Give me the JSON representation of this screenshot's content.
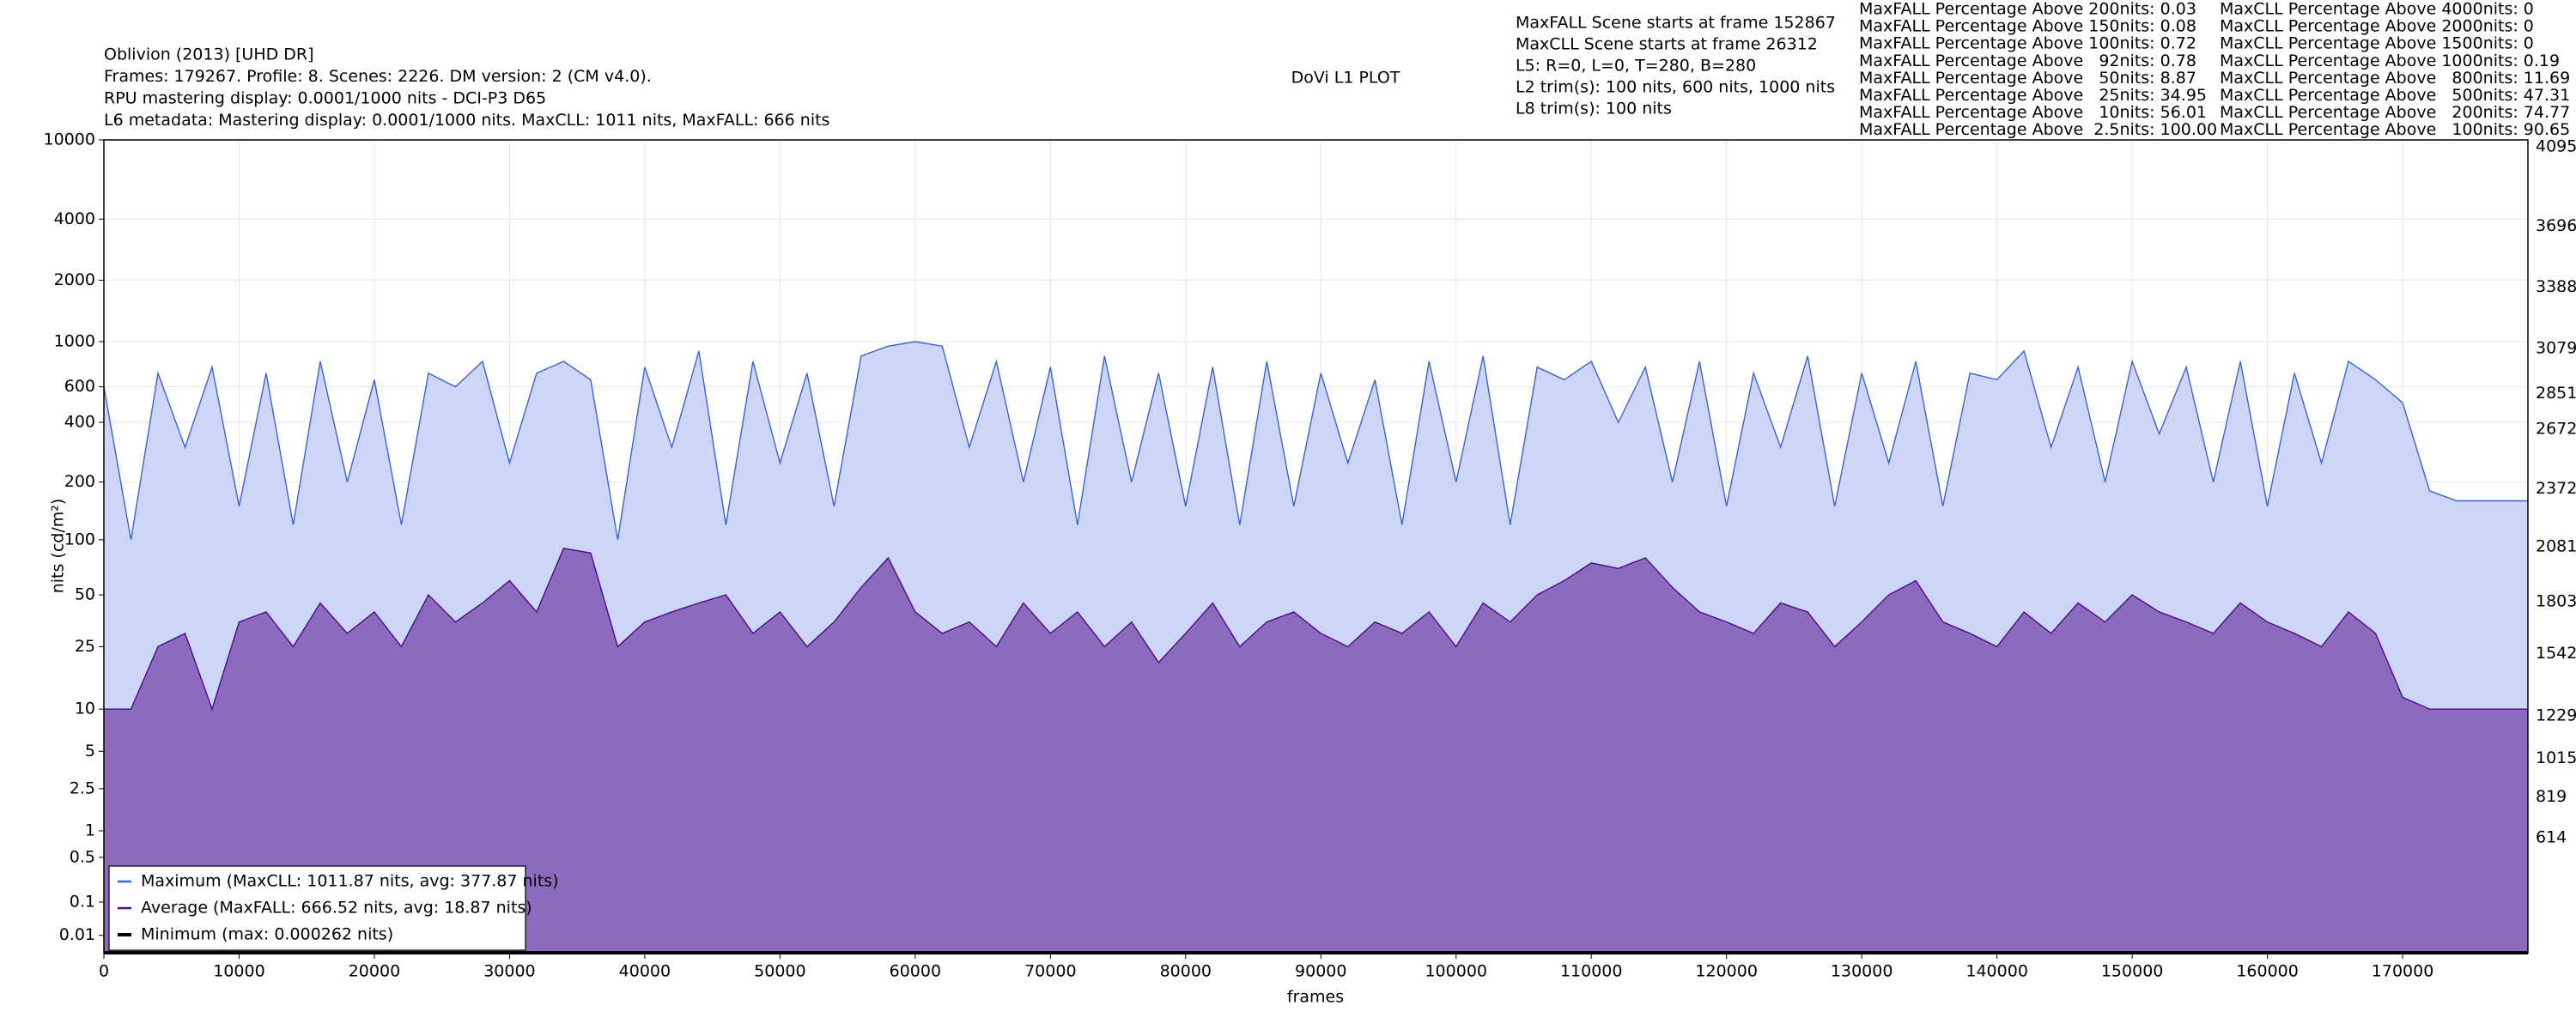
{
  "chart_data": {
    "type": "line",
    "title": "DoVi L1 PLOT",
    "info_lines": [
      "Oblivion (2013) [UHD DR]",
      "Frames: 179267. Profile: 8. Scenes: 2226. DM version: 2 (CM v4.0).",
      "RPU mastering display: 0.0001/1000 nits - DCI-P3 D65",
      "L6 metadata: Mastering display: 0.0001/1000 nits. MaxCLL: 1011 nits, MaxFALL: 666 nits"
    ],
    "scene_info": [
      "MaxFALL Scene starts at frame 152867",
      "MaxCLL Scene starts at frame 26312",
      "L5: R=0, L=0, T=280, B=280",
      "L2 trim(s): 100 nits, 600 nits, 1000 nits",
      "L8 trim(s): 100 nits"
    ],
    "maxfall_stats": [
      "MaxFALL Percentage Above 200nits: 0.03",
      "MaxFALL Percentage Above 150nits: 0.08",
      "MaxFALL Percentage Above 100nits: 0.72",
      "MaxFALL Percentage Above   92nits: 0.78",
      "MaxFALL Percentage Above   50nits: 8.87",
      "MaxFALL Percentage Above   25nits: 34.95",
      "MaxFALL Percentage Above   10nits: 56.01",
      "MaxFALL Percentage Above  2.5nits: 100.00"
    ],
    "maxcll_stats": [
      "MaxCLL Percentage Above 4000nits: 0",
      "MaxCLL Percentage Above 2000nits: 0",
      "MaxCLL Percentage Above 1500nits: 0",
      "MaxCLL Percentage Above 1000nits: 0.19",
      "MaxCLL Percentage Above   800nits: 11.69",
      "MaxCLL Percentage Above   500nits: 47.31",
      "MaxCLL Percentage Above   200nits: 74.77",
      "MaxCLL Percentage Above   100nits: 90.65"
    ],
    "x_label": "frames",
    "y_label": "nits (cd/m²)",
    "y_scale": "pq",
    "grid": true,
    "legend": "lower left",
    "xlim": [
      0,
      179267
    ],
    "xticks": [
      0,
      10000,
      20000,
      30000,
      40000,
      50000,
      60000,
      70000,
      80000,
      90000,
      100000,
      110000,
      120000,
      130000,
      140000,
      150000,
      160000,
      170000
    ],
    "ylim": [
      0,
      10000
    ],
    "yticks": [
      0.01,
      0.1,
      0.5,
      1,
      2.5,
      5,
      10,
      25,
      50,
      100,
      200,
      400,
      600,
      1000,
      2000,
      4000,
      10000
    ],
    "y2lim": [
      0,
      4095
    ],
    "y2ticks": [
      614,
      819,
      1015,
      1229,
      1542,
      1803,
      2081,
      2372,
      2672,
      2851,
      3079,
      3388,
      3696,
      4095
    ],
    "x": [
      0,
      2000,
      4000,
      6000,
      8000,
      10000,
      12000,
      14000,
      16000,
      18000,
      20000,
      22000,
      24000,
      26000,
      28000,
      30000,
      32000,
      34000,
      36000,
      38000,
      40000,
      42000,
      44000,
      46000,
      48000,
      50000,
      52000,
      54000,
      56000,
      58000,
      60000,
      62000,
      64000,
      66000,
      68000,
      70000,
      72000,
      74000,
      76000,
      78000,
      80000,
      82000,
      84000,
      86000,
      88000,
      90000,
      92000,
      94000,
      96000,
      98000,
      100000,
      102000,
      104000,
      106000,
      108000,
      110000,
      112000,
      114000,
      116000,
      118000,
      120000,
      122000,
      124000,
      126000,
      128000,
      130000,
      132000,
      134000,
      136000,
      138000,
      140000,
      142000,
      144000,
      146000,
      148000,
      150000,
      152000,
      154000,
      156000,
      158000,
      160000,
      162000,
      164000,
      166000,
      168000,
      170000,
      172000,
      174000,
      176000,
      178000,
      179267
    ],
    "series": [
      {
        "name": "Maximum (MaxCLL: 1011.87 nits, avg: 377.87 nits)",
        "color": "#3a62d8",
        "fill_color": "#cdd6f6",
        "values": [
          600,
          100,
          700,
          300,
          750,
          150,
          700,
          120,
          800,
          200,
          650,
          120,
          700,
          600,
          800,
          250,
          700,
          800,
          650,
          100,
          750,
          300,
          900,
          120,
          800,
          250,
          700,
          150,
          850,
          950,
          1000,
          950,
          300,
          800,
          200,
          750,
          120,
          850,
          200,
          700,
          150,
          750,
          120,
          800,
          150,
          700,
          250,
          650,
          120,
          800,
          200,
          850,
          120,
          750,
          650,
          800,
          400,
          750,
          200,
          800,
          150,
          700,
          300,
          850,
          150,
          700,
          250,
          800,
          150,
          700,
          650,
          900,
          300,
          750,
          200,
          800,
          350,
          750,
          200,
          800,
          150,
          700,
          250,
          800,
          650,
          500,
          180,
          160,
          160,
          160,
          160
        ]
      },
      {
        "name": "Average (MaxFALL: 666.52 nits, avg: 18.87 nits)",
        "color": "#4b0a8c",
        "fill_color": "#8c6bbf",
        "values": [
          10,
          10,
          25,
          30,
          10,
          35,
          40,
          25,
          45,
          30,
          40,
          25,
          50,
          35,
          45,
          60,
          40,
          90,
          85,
          25,
          35,
          40,
          45,
          50,
          30,
          40,
          25,
          35,
          55,
          80,
          40,
          30,
          35,
          25,
          45,
          30,
          40,
          25,
          35,
          20,
          30,
          45,
          25,
          35,
          40,
          30,
          25,
          35,
          30,
          40,
          25,
          45,
          35,
          50,
          60,
          75,
          70,
          80,
          55,
          40,
          35,
          30,
          45,
          40,
          25,
          35,
          50,
          60,
          35,
          30,
          25,
          40,
          30,
          45,
          35,
          50,
          40,
          35,
          30,
          45,
          35,
          30,
          25,
          40,
          30,
          12,
          10,
          10,
          10,
          10,
          10
        ]
      },
      {
        "name": "Minimum (max: 0.000262 nits)",
        "color": "#000000",
        "values": [
          0,
          0,
          0,
          0,
          0,
          0,
          0,
          0,
          0,
          0,
          0,
          0,
          0,
          0,
          0,
          0,
          0,
          0,
          0,
          0,
          0,
          0,
          0,
          0,
          0,
          0,
          0,
          0,
          0,
          0,
          0,
          0,
          0,
          0,
          0,
          0,
          0,
          0,
          0,
          0,
          0,
          0,
          0,
          0,
          0,
          0,
          0,
          0,
          0,
          0,
          0,
          0,
          0,
          0,
          0,
          0,
          0,
          0,
          0,
          0,
          0,
          0,
          0,
          0,
          0,
          0,
          0,
          0,
          0,
          0,
          0,
          0,
          0,
          0,
          0,
          0,
          0,
          0,
          0,
          0,
          0,
          0,
          0,
          0,
          0,
          0,
          0,
          0,
          0,
          0,
          0
        ]
      }
    ]
  }
}
